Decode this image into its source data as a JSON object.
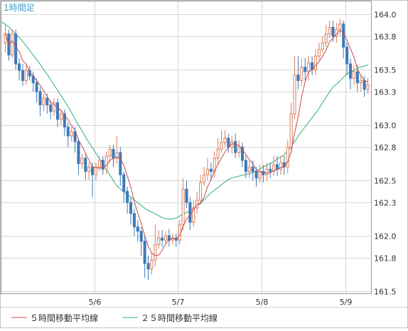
{
  "chart_data": {
    "type": "candlestick",
    "timeframe_label": "1時間足",
    "y_ticks": [
      161.5,
      161.8,
      162.0,
      162.3,
      162.5,
      162.8,
      163.0,
      163.3,
      163.5,
      163.8,
      164.0
    ],
    "ylim": [
      161.48,
      164.12
    ],
    "x_ticks": [
      "5/6",
      "5/7",
      "5/8",
      "5/9"
    ],
    "grid": true,
    "colors": {
      "up_body": "#d88060",
      "down_body": "#3f7ab9",
      "ma5": "#c84a4a",
      "ma25": "#2fae7e",
      "grid": "#d6d6d6",
      "axis_text": "#333333",
      "label": "#3f9fcf"
    },
    "legend": [
      {
        "label": "５時間移動平均線",
        "color": "#c84a4a"
      },
      {
        "label": "２５時間移動平均線",
        "color": "#2fae7e"
      }
    ],
    "candles_open_close": [
      [
        163.74,
        163.82
      ],
      [
        163.82,
        163.63
      ],
      [
        163.63,
        163.82
      ],
      [
        163.82,
        163.55
      ],
      [
        163.55,
        163.49
      ],
      [
        163.49,
        163.4
      ],
      [
        163.4,
        163.49
      ],
      [
        163.49,
        163.44
      ],
      [
        163.44,
        163.38
      ],
      [
        163.38,
        163.3
      ],
      [
        163.3,
        163.18
      ],
      [
        163.18,
        163.24
      ],
      [
        163.24,
        163.18
      ],
      [
        163.18,
        163.12
      ],
      [
        163.12,
        163.2
      ],
      [
        163.2,
        163.05
      ],
      [
        163.05,
        163.1
      ],
      [
        163.1,
        162.98
      ],
      [
        162.98,
        162.9
      ],
      [
        162.9,
        162.94
      ],
      [
        162.94,
        162.85
      ],
      [
        162.85,
        162.65
      ],
      [
        162.65,
        162.7
      ],
      [
        162.7,
        162.58
      ],
      [
        162.58,
        162.62
      ],
      [
        162.62,
        162.55
      ],
      [
        162.55,
        162.62
      ],
      [
        162.62,
        162.68
      ],
      [
        162.68,
        162.6
      ],
      [
        162.6,
        162.72
      ],
      [
        162.72,
        162.78
      ],
      [
        162.78,
        162.7
      ],
      [
        162.7,
        162.75
      ],
      [
        162.75,
        162.55
      ],
      [
        162.55,
        162.4
      ],
      [
        162.4,
        162.3
      ],
      [
        162.3,
        162.2
      ],
      [
        162.2,
        162.08
      ],
      [
        162.08,
        162.04
      ],
      [
        162.04,
        161.95
      ],
      [
        161.95,
        161.75
      ],
      [
        161.75,
        161.7
      ],
      [
        161.7,
        161.78
      ],
      [
        161.78,
        161.92
      ],
      [
        161.92,
        161.98
      ],
      [
        161.98,
        161.96
      ],
      [
        161.96,
        162.0
      ],
      [
        162.0,
        161.96
      ],
      [
        161.96,
        161.98
      ],
      [
        161.98,
        161.96
      ],
      [
        161.96,
        162.1
      ],
      [
        162.1,
        162.42
      ],
      [
        162.42,
        162.3
      ],
      [
        162.3,
        162.12
      ],
      [
        162.12,
        162.25
      ],
      [
        162.25,
        162.32
      ],
      [
        162.32,
        162.48
      ],
      [
        162.48,
        162.55
      ],
      [
        162.55,
        162.6
      ],
      [
        162.6,
        162.58
      ],
      [
        162.58,
        162.7
      ],
      [
        162.7,
        162.78
      ],
      [
        162.78,
        162.84
      ],
      [
        162.84,
        162.88
      ],
      [
        162.88,
        162.8
      ],
      [
        162.8,
        162.85
      ],
      [
        162.85,
        162.75
      ],
      [
        162.75,
        162.8
      ],
      [
        162.8,
        162.68
      ],
      [
        162.68,
        162.58
      ],
      [
        162.58,
        162.62
      ],
      [
        162.62,
        162.58
      ],
      [
        162.58,
        162.52
      ],
      [
        162.52,
        162.58
      ],
      [
        162.58,
        162.55
      ],
      [
        162.55,
        162.6
      ],
      [
        162.6,
        162.58
      ],
      [
        162.58,
        162.64
      ],
      [
        162.64,
        162.6
      ],
      [
        162.6,
        162.66
      ],
      [
        162.66,
        162.62
      ],
      [
        162.62,
        162.8
      ],
      [
        162.8,
        163.1
      ],
      [
        163.1,
        163.45
      ],
      [
        163.45,
        163.4
      ],
      [
        163.4,
        163.52
      ],
      [
        163.52,
        163.48
      ],
      [
        163.48,
        163.56
      ],
      [
        163.56,
        163.5
      ],
      [
        163.5,
        163.62
      ],
      [
        163.62,
        163.68
      ],
      [
        163.68,
        163.74
      ],
      [
        163.74,
        163.82
      ],
      [
        163.82,
        163.88
      ],
      [
        163.88,
        163.8
      ],
      [
        163.8,
        163.86
      ],
      [
        163.86,
        163.91
      ],
      [
        163.91,
        163.7
      ],
      [
        163.7,
        163.55
      ],
      [
        163.55,
        163.42
      ],
      [
        163.42,
        163.48
      ],
      [
        163.48,
        163.38
      ],
      [
        163.38,
        163.4
      ],
      [
        163.4,
        163.32
      ],
      [
        163.32,
        163.36
      ]
    ],
    "candles_high_low": [
      [
        163.9,
        163.65
      ],
      [
        163.86,
        163.58
      ],
      [
        163.86,
        163.6
      ],
      [
        163.86,
        163.5
      ],
      [
        163.6,
        163.4
      ],
      [
        163.55,
        163.35
      ],
      [
        163.54,
        163.36
      ],
      [
        163.53,
        163.4
      ],
      [
        163.48,
        163.3
      ],
      [
        163.42,
        163.2
      ],
      [
        163.34,
        163.08
      ],
      [
        163.28,
        163.12
      ],
      [
        163.28,
        163.1
      ],
      [
        163.22,
        163.05
      ],
      [
        163.24,
        163.08
      ],
      [
        163.24,
        162.98
      ],
      [
        163.14,
        163.0
      ],
      [
        163.14,
        162.9
      ],
      [
        163.02,
        162.8
      ],
      [
        162.98,
        162.85
      ],
      [
        162.98,
        162.75
      ],
      [
        162.88,
        162.55
      ],
      [
        162.74,
        162.6
      ],
      [
        162.74,
        162.5
      ],
      [
        162.66,
        162.5
      ],
      [
        162.66,
        162.35
      ],
      [
        162.66,
        162.5
      ],
      [
        162.72,
        162.58
      ],
      [
        162.72,
        162.55
      ],
      [
        162.76,
        162.55
      ],
      [
        162.82,
        162.66
      ],
      [
        162.82,
        162.62
      ],
      [
        162.9,
        162.65
      ],
      [
        162.8,
        162.45
      ],
      [
        162.58,
        162.3
      ],
      [
        162.44,
        162.2
      ],
      [
        162.34,
        162.1
      ],
      [
        162.24,
        162.0
      ],
      [
        162.14,
        161.95
      ],
      [
        162.08,
        161.82
      ],
      [
        161.99,
        161.62
      ],
      [
        161.82,
        161.6
      ],
      [
        161.85,
        161.65
      ],
      [
        162.1,
        161.72
      ],
      [
        162.05,
        161.88
      ],
      [
        162.05,
        161.9
      ],
      [
        162.04,
        161.92
      ],
      [
        162.06,
        161.9
      ],
      [
        162.02,
        161.92
      ],
      [
        162.02,
        161.9
      ],
      [
        162.14,
        161.92
      ],
      [
        162.52,
        162.05
      ],
      [
        162.5,
        162.25
      ],
      [
        162.35,
        162.05
      ],
      [
        162.32,
        162.08
      ],
      [
        162.4,
        162.2
      ],
      [
        162.55,
        162.28
      ],
      [
        162.62,
        162.45
      ],
      [
        162.7,
        162.5
      ],
      [
        162.66,
        162.5
      ],
      [
        162.76,
        162.52
      ],
      [
        162.88,
        162.65
      ],
      [
        162.95,
        162.75
      ],
      [
        162.95,
        162.8
      ],
      [
        162.92,
        162.75
      ],
      [
        162.9,
        162.74
      ],
      [
        162.92,
        162.7
      ],
      [
        162.86,
        162.7
      ],
      [
        162.84,
        162.62
      ],
      [
        162.72,
        162.52
      ],
      [
        162.68,
        162.52
      ],
      [
        162.68,
        162.5
      ],
      [
        162.62,
        162.44
      ],
      [
        162.64,
        162.48
      ],
      [
        162.64,
        162.48
      ],
      [
        162.66,
        162.5
      ],
      [
        162.66,
        162.52
      ],
      [
        162.72,
        162.54
      ],
      [
        162.72,
        162.54
      ],
      [
        162.72,
        162.55
      ],
      [
        162.72,
        162.55
      ],
      [
        162.86,
        162.56
      ],
      [
        163.2,
        162.74
      ],
      [
        163.62,
        163.05
      ],
      [
        163.62,
        163.32
      ],
      [
        163.6,
        163.35
      ],
      [
        163.6,
        163.4
      ],
      [
        163.62,
        163.4
      ],
      [
        163.62,
        163.45
      ],
      [
        163.68,
        163.45
      ],
      [
        163.74,
        163.58
      ],
      [
        163.8,
        163.65
      ],
      [
        163.9,
        163.7
      ],
      [
        163.94,
        163.78
      ],
      [
        163.94,
        163.75
      ],
      [
        163.92,
        163.74
      ],
      [
        163.96,
        163.8
      ],
      [
        163.94,
        163.6
      ],
      [
        163.74,
        163.45
      ],
      [
        163.6,
        163.32
      ],
      [
        163.54,
        163.36
      ],
      [
        163.54,
        163.3
      ],
      [
        163.45,
        163.3
      ],
      [
        163.44,
        163.25
      ],
      [
        163.42,
        163.28
      ]
    ],
    "ma25_line": [
      163.93,
      163.91,
      163.88,
      163.84,
      163.8,
      163.76,
      163.71,
      163.66,
      163.61,
      163.56,
      163.5,
      163.45,
      163.39,
      163.33,
      163.27,
      163.21,
      163.15,
      163.08,
      163.01,
      162.95,
      162.88,
      162.82,
      162.76,
      162.7,
      162.64,
      162.58,
      162.52,
      162.46,
      162.42,
      162.39,
      162.36,
      162.33,
      162.3,
      162.27,
      162.24,
      162.22,
      162.2,
      162.18,
      162.16,
      162.15,
      162.15,
      162.16,
      162.18,
      162.2,
      162.22,
      162.24,
      162.27,
      162.3,
      162.34,
      162.38,
      162.41,
      162.44,
      162.47,
      162.5,
      162.52,
      162.53,
      162.54,
      162.55,
      162.56,
      162.57,
      162.59,
      162.61,
      162.63,
      162.65,
      162.67,
      162.7,
      162.72,
      162.76,
      162.81,
      162.86,
      162.92,
      162.97,
      163.02,
      163.07,
      163.12,
      163.18,
      163.24,
      163.3,
      163.35,
      163.38,
      163.42,
      163.46,
      163.48,
      163.5,
      163.52,
      163.53,
      163.54
    ]
  }
}
